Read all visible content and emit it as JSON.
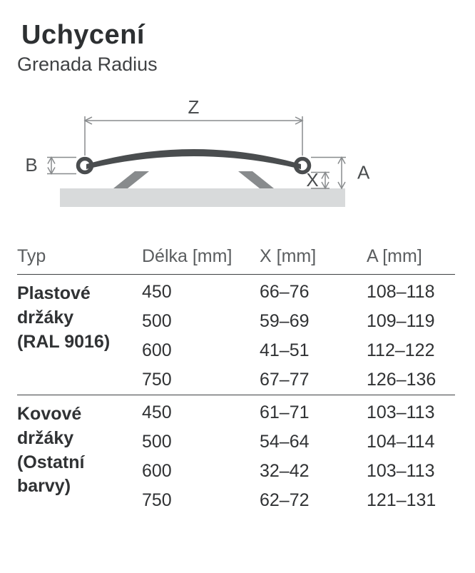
{
  "header": {
    "title": "Uchycení",
    "subtitle": "Grenada Radius"
  },
  "diagram": {
    "labels": {
      "Z": "Z",
      "B": "B",
      "X": "X",
      "A": "A"
    },
    "colors": {
      "body_stroke": "#4a4d4f",
      "body_fill": "#4a4d4f",
      "bracket": "#888b8d",
      "base": "#d8dadb",
      "dim_line": "#888b8d",
      "text": "#4a4d4f",
      "bg": "#ffffff"
    },
    "label_fontsize": 26
  },
  "table": {
    "columns": {
      "typ": "Typ",
      "delka": "Délka [mm]",
      "x": "X [mm]",
      "a": "A [mm]"
    },
    "groups": [
      {
        "typ_lines": [
          "Plastové",
          "držáky",
          "(RAL 9016)"
        ],
        "rows": [
          {
            "delka": "450",
            "x": "66–76",
            "a": "108–118"
          },
          {
            "delka": "500",
            "x": "59–69",
            "a": "109–119"
          },
          {
            "delka": "600",
            "x": "41–51",
            "a": "112–122"
          },
          {
            "delka": "750",
            "x": "67–77",
            "a": "126–136"
          }
        ]
      },
      {
        "typ_lines": [
          "Kovové",
          "držáky",
          "(Ostatní",
          "barvy)"
        ],
        "rows": [
          {
            "delka": "450",
            "x": "61–71",
            "a": "103–113"
          },
          {
            "delka": "500",
            "x": "54–64",
            "a": "104–114"
          },
          {
            "delka": "600",
            "x": "32–42",
            "a": "103–113"
          },
          {
            "delka": "750",
            "x": "62–72",
            "a": "121–131"
          }
        ]
      }
    ]
  }
}
